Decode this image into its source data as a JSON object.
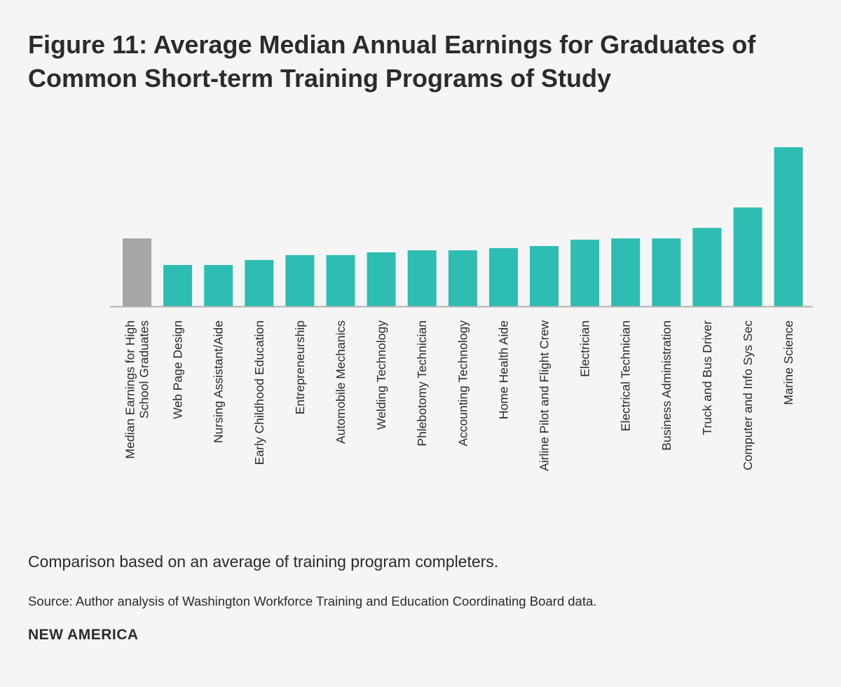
{
  "title_lines": [
    "Figure 11: Average Median Annual Earnings for Graduates of",
    "Common Short-term Training Programs of Study"
  ],
  "note": "Comparison based on an average of training program completers.",
  "source": "Source: Author analysis of Washington Workforce Training and Education Coordinating Board data.",
  "brand": "NEW AMERICA",
  "colors": {
    "baseline_bar": "#a6a6a6",
    "program_bar": "#2ebdb2",
    "axis": "#b3b3b3"
  },
  "chart_data": {
    "type": "bar",
    "title": "Figure 11: Average Median Annual Earnings for Graduates of Common Short-term Training Programs of Study",
    "xlabel": "",
    "ylabel": "",
    "ylim": [
      0,
      100
    ],
    "values_note": "Relative bar heights (no numeric axis shown); Marine Science = 100",
    "categories": [
      [
        "Median Earnings for High",
        "School Graduates"
      ],
      [
        "Web Page Design"
      ],
      [
        "Nursing Assistant/Aide"
      ],
      [
        "Early Childhood Education"
      ],
      [
        "Entrepreneurship"
      ],
      [
        "Automobile Mechanics"
      ],
      [
        "Welding Technology"
      ],
      [
        "Phlebotomy Technician"
      ],
      [
        "Accounting Technology"
      ],
      [
        "Home Health Aide"
      ],
      [
        "Airline Pilot and Flight Crew"
      ],
      [
        "Electrician"
      ],
      [
        "Electrical Technician"
      ],
      [
        "Business Administration"
      ],
      [
        "Truck and Bus Driver"
      ],
      [
        "Computer and Info Sys Sec"
      ],
      [
        "Marine Science"
      ]
    ],
    "values": [
      42.7,
      26.0,
      26.0,
      29.1,
      32.2,
      32.2,
      33.9,
      35.2,
      35.2,
      36.6,
      37.9,
      41.9,
      42.7,
      42.7,
      49.3,
      62.1,
      100
    ],
    "bar_kind": [
      "baseline",
      "program",
      "program",
      "program",
      "program",
      "program",
      "program",
      "program",
      "program",
      "program",
      "program",
      "program",
      "program",
      "program",
      "program",
      "program",
      "program"
    ]
  }
}
